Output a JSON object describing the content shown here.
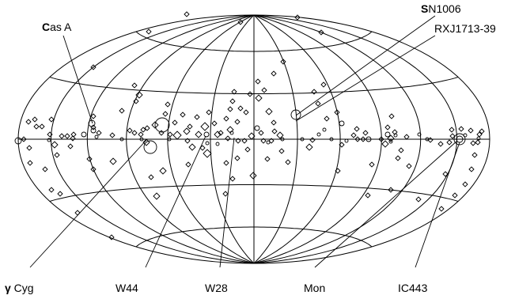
{
  "projection": "Hammer-Aitoff all-sky map (galactic coordinates)",
  "marker_shapes": {
    "diamond": "diamond",
    "circle": "circle"
  },
  "source_labels": {
    "cas_a": {
      "prefix": "C",
      "rest": "as A"
    },
    "sn1006": {
      "prefix": "S",
      "rest": "N1006"
    },
    "rxj1713": "RXJ1713-39",
    "gamma_cyg": {
      "symbol": "γ",
      "rest": " Cyg"
    },
    "w44": "W44",
    "w28": "W28",
    "mon": "Mon",
    "ic443": "IC443"
  },
  "colors": {
    "ink": "#000000",
    "background": "#ffffff"
  }
}
